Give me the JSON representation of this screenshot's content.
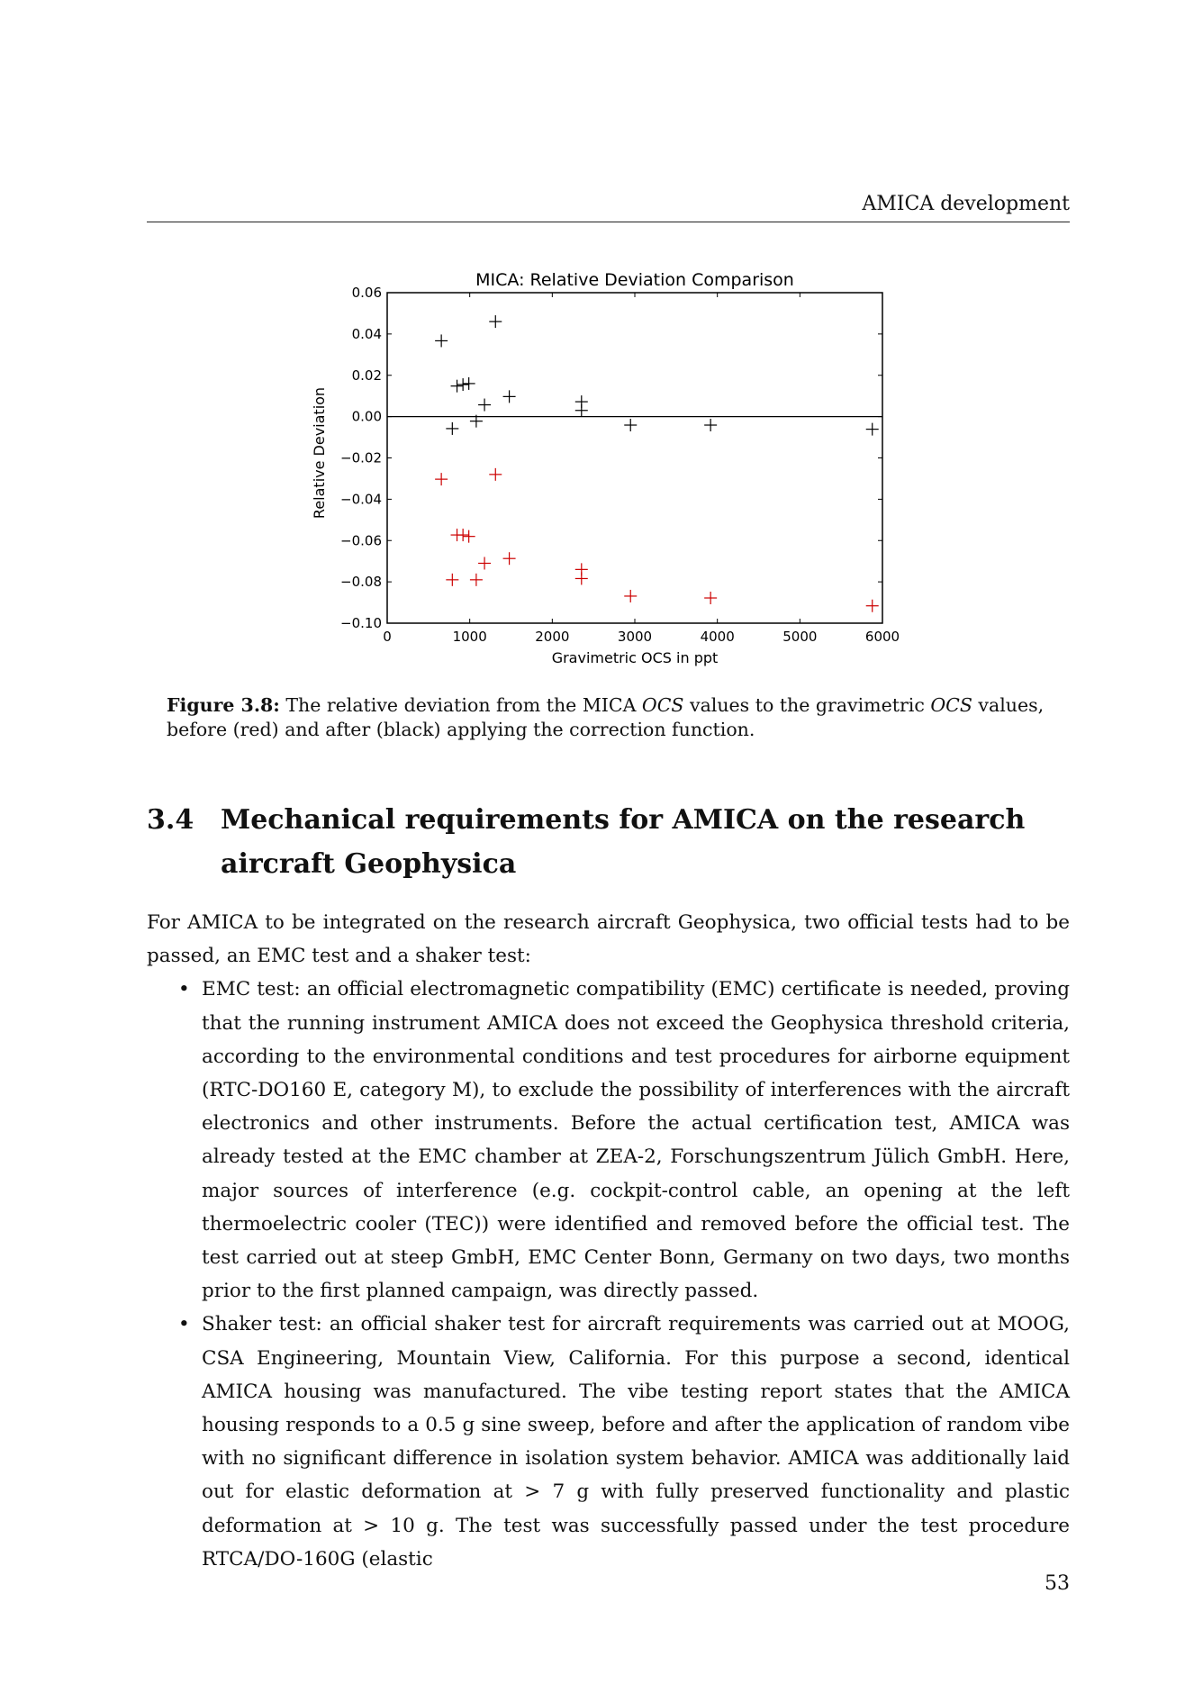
{
  "running_head": "AMICA development",
  "chart_data": {
    "type": "scatter",
    "title": "MICA: Relative Deviation Comparison",
    "xlabel": "Gravimetric OCS in ppt",
    "ylabel": "Relative Deviation",
    "xlim": [
      0,
      6000
    ],
    "ylim": [
      -0.1,
      0.06
    ],
    "xticks": [
      "0",
      "1000",
      "2000",
      "3000",
      "4000",
      "5000",
      "6000"
    ],
    "xtick_values": [
      0,
      1000,
      2000,
      3000,
      4000,
      5000,
      6000
    ],
    "yticks": [
      "0.06",
      "0.04",
      "0.02",
      "0.00",
      "−0.02",
      "−0.04",
      "−0.06",
      "−0.08",
      "−0.10"
    ],
    "ytick_values": [
      0.06,
      0.04,
      0.02,
      0.0,
      -0.02,
      -0.04,
      -0.06,
      -0.08,
      -0.1
    ],
    "hline": 0.0,
    "marker": "plus",
    "grid": false,
    "series": [
      {
        "color": "#000000",
        "points": [
          [
            656,
            0.0367
          ],
          [
            1312,
            0.046
          ],
          [
            846,
            0.0148
          ],
          [
            918,
            0.0155
          ],
          [
            989,
            0.016
          ],
          [
            1179,
            0.0057
          ],
          [
            1479,
            0.0097
          ],
          [
            2354,
            0.0072
          ],
          [
            2354,
            0.003
          ],
          [
            789,
            -0.0058
          ],
          [
            1079,
            -0.0022
          ],
          [
            2948,
            -0.0041
          ],
          [
            3918,
            -0.0041
          ],
          [
            5877,
            -0.0061
          ]
        ]
      },
      {
        "color": "#cc0000",
        "points": [
          [
            656,
            -0.0303
          ],
          [
            1312,
            -0.028
          ],
          [
            846,
            -0.0573
          ],
          [
            918,
            -0.0573
          ],
          [
            989,
            -0.058
          ],
          [
            1179,
            -0.071
          ],
          [
            1479,
            -0.0687
          ],
          [
            2354,
            -0.074
          ],
          [
            2354,
            -0.0784
          ],
          [
            789,
            -0.079
          ],
          [
            1079,
            -0.079
          ],
          [
            2948,
            -0.0869
          ],
          [
            3918,
            -0.0878
          ],
          [
            5877,
            -0.0916
          ]
        ]
      }
    ]
  },
  "caption": {
    "label": "Figure 3.8:",
    "text_1": " The relative deviation from the MICA ",
    "ocs_1": "OCS",
    "text_2": " values to the gravimetric ",
    "ocs_2": "OCS",
    "text_3": " values, before (red) and after (black) applying the correction function."
  },
  "section": {
    "number": "3.4",
    "title": "Mechanical requirements for AMICA on the research aircraft Geophysica"
  },
  "body": {
    "intro": "For AMICA to be integrated on the research aircraft Geophysica, two official tests had to be passed, an EMC test and a shaker test:",
    "bullets": [
      "EMC test: an official electromagnetic compatibility (EMC) certificate is needed, proving that the running instrument AMICA does not exceed the Geophysica threshold criteria, according to the environmental conditions and test procedures for airborne equipment (RTC-DO160 E, category M), to exclude the possibility of interferences with the aircraft electronics and other instruments. Before the actual certification test, AMICA was already tested at the EMC chamber at ZEA-2, Forschungszentrum Jülich GmbH. Here, major sources of interference (e.g. cockpit-control cable, an opening at the left thermoelectric cooler (TEC)) were identified and removed before the official test. The test carried out at steep GmbH, EMC Center Bonn, Germany on two days, two months prior to the first planned campaign, was directly passed.",
      "Shaker test: an official shaker test for aircraft requirements was carried out at MOOG, CSA Engineering, Mountain View, California. For this purpose a second, identical AMICA housing was manufactured. The vibe testing report states that the AMICA housing responds to a 0.5 g sine sweep, before and after the application of random vibe with no significant difference in isolation system behavior. AMICA was additionally laid out for elastic deformation at > 7 g with fully preserved functionality and plastic deformation at > 10 g. The test was successfully passed under the test procedure RTCA/DO-160G (elastic"
    ],
    "bullet_symbol": "•"
  },
  "page_number": "53"
}
